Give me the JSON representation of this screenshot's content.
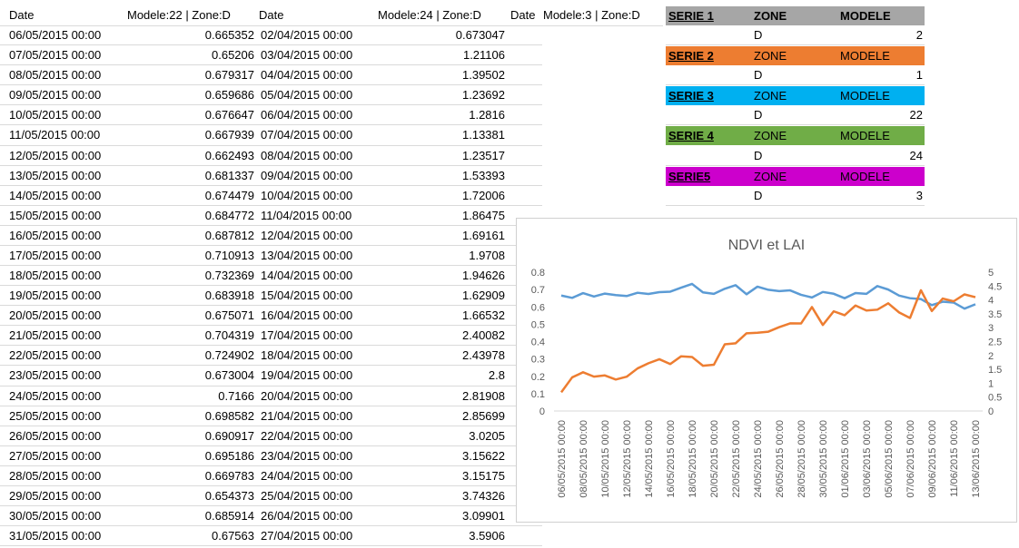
{
  "table": {
    "header": [
      "Date",
      "Modele:22 | Zone:D",
      "Date",
      "Modele:24 | Zone:D",
      "Date",
      "Modele:3 | Zone:D"
    ],
    "rows": [
      [
        "06/05/2015 00:00",
        "0.665352",
        "02/04/2015 00:00",
        "0.673047"
      ],
      [
        "07/05/2015 00:00",
        "0.65206",
        "03/04/2015 00:00",
        "1.21106"
      ],
      [
        "08/05/2015 00:00",
        "0.679317",
        "04/04/2015 00:00",
        "1.39502"
      ],
      [
        "09/05/2015 00:00",
        "0.659686",
        "05/04/2015 00:00",
        "1.23692"
      ],
      [
        "10/05/2015 00:00",
        "0.676647",
        "06/04/2015 00:00",
        "1.2816"
      ],
      [
        "11/05/2015 00:00",
        "0.667939",
        "07/04/2015 00:00",
        "1.13381"
      ],
      [
        "12/05/2015 00:00",
        "0.662493",
        "08/04/2015 00:00",
        "1.23517"
      ],
      [
        "13/05/2015 00:00",
        "0.681337",
        "09/04/2015 00:00",
        "1.53393"
      ],
      [
        "14/05/2015 00:00",
        "0.674479",
        "10/04/2015 00:00",
        "1.72006"
      ],
      [
        "15/05/2015 00:00",
        "0.684772",
        "11/04/2015 00:00",
        "1.86475"
      ],
      [
        "16/05/2015 00:00",
        "0.687812",
        "12/04/2015 00:00",
        "1.69161"
      ],
      [
        "17/05/2015 00:00",
        "0.710913",
        "13/04/2015 00:00",
        "1.9708"
      ],
      [
        "18/05/2015 00:00",
        "0.732369",
        "14/04/2015 00:00",
        "1.94626"
      ],
      [
        "19/05/2015 00:00",
        "0.683918",
        "15/04/2015 00:00",
        "1.62909"
      ],
      [
        "20/05/2015 00:00",
        "0.675071",
        "16/04/2015 00:00",
        "1.66532"
      ],
      [
        "21/05/2015 00:00",
        "0.704319",
        "17/04/2015 00:00",
        "2.40082"
      ],
      [
        "22/05/2015 00:00",
        "0.724902",
        "18/04/2015 00:00",
        "2.43978"
      ],
      [
        "23/05/2015 00:00",
        "0.673004",
        "19/04/2015 00:00",
        "2.8"
      ],
      [
        "24/05/2015 00:00",
        "0.7166",
        "20/04/2015 00:00",
        "2.81908"
      ],
      [
        "25/05/2015 00:00",
        "0.698582",
        "21/04/2015 00:00",
        "2.85699"
      ],
      [
        "26/05/2015 00:00",
        "0.690917",
        "22/04/2015 00:00",
        "3.0205"
      ],
      [
        "27/05/2015 00:00",
        "0.695186",
        "23/04/2015 00:00",
        "3.15622"
      ],
      [
        "28/05/2015 00:00",
        "0.669783",
        "24/04/2015 00:00",
        "3.15175"
      ],
      [
        "29/05/2015 00:00",
        "0.654373",
        "25/04/2015 00:00",
        "3.74326"
      ],
      [
        "30/05/2015 00:00",
        "0.685914",
        "26/04/2015 00:00",
        "3.09901"
      ],
      [
        "31/05/2015 00:00",
        "0.67563",
        "27/04/2015 00:00",
        "3.5906"
      ]
    ]
  },
  "series_blocks": [
    {
      "title": "SERIE 1",
      "zone_label": "ZONE",
      "modele_label": "MODELE",
      "zone": "D",
      "modele": "2",
      "color": "#a6a6a6"
    },
    {
      "title": "SERIE 2",
      "zone_label": "ZONE",
      "modele_label": "MODELE",
      "zone": "D",
      "modele": "1",
      "color": "#ed7d31"
    },
    {
      "title": "SERIE 3",
      "zone_label": "ZONE",
      "modele_label": "MODELE",
      "zone": "D",
      "modele": "22",
      "color": "#00b0f0"
    },
    {
      "title": "SERIE 4",
      "zone_label": "ZONE",
      "modele_label": "MODELE",
      "zone": "D",
      "modele": "24",
      "color": "#70ad47"
    },
    {
      "title": "SERIE5",
      "zone_label": "ZONE",
      "modele_label": "MODELE",
      "zone": "D",
      "modele": "3",
      "color": "#cc00cc"
    }
  ],
  "chart_data": {
    "type": "line",
    "title": "NDVI et LAI",
    "categories": [
      "06/05/2015 00:00",
      null,
      "08/05/2015 00:00",
      null,
      "10/05/2015 00:00",
      null,
      "12/05/2015 00:00",
      null,
      "14/05/2015 00:00",
      null,
      "16/05/2015 00:00",
      null,
      "18/05/2015 00:00",
      null,
      "20/05/2015 00:00",
      null,
      "22/05/2015 00:00",
      null,
      "24/05/2015 00:00",
      null,
      "26/05/2015 00:00",
      null,
      "28/05/2015 00:00",
      null,
      "30/05/2015 00:00",
      null,
      "01/06/2015 00:00",
      null,
      "03/06/2015 00:00",
      null,
      "05/06/2015 00:00",
      null,
      "07/06/2015 00:00",
      null,
      "09/06/2015 00:00",
      null,
      "11/06/2015 00:00",
      null,
      "13/06/2015 00:00"
    ],
    "series": [
      {
        "color": "#5b9bd5",
        "values": [
          0.665352,
          0.65206,
          0.679317,
          0.659686,
          0.676647,
          0.667939,
          0.662493,
          0.681337,
          0.674479,
          0.684772,
          0.687812,
          0.710913,
          0.732369,
          0.683918,
          0.675071,
          0.704319,
          0.724902,
          0.673004,
          0.7166,
          0.698582,
          0.690917,
          0.695186,
          0.669783,
          0.654373,
          0.685914,
          0.67563,
          0.65,
          0.68,
          0.675,
          0.72,
          0.7,
          0.665,
          0.65,
          0.645,
          0.61,
          0.63,
          0.625,
          0.59,
          0.615
        ]
      },
      {
        "color": "#ed7d31",
        "axis": "y2",
        "values": [
          0.673047,
          1.21106,
          1.39502,
          1.23692,
          1.2816,
          1.13381,
          1.23517,
          1.53393,
          1.72006,
          1.86475,
          1.69161,
          1.9708,
          1.94626,
          1.62909,
          1.66532,
          2.40082,
          2.43978,
          2.8,
          2.81908,
          2.85699,
          3.0205,
          3.15622,
          3.15175,
          3.74326,
          3.09901,
          3.5906,
          3.45,
          3.8,
          3.62,
          3.65,
          3.88,
          3.55,
          3.35,
          4.35,
          3.6,
          4.05,
          3.95,
          4.2,
          4.1
        ]
      }
    ],
    "ylim": [
      0,
      0.8
    ],
    "yticks": [
      0,
      0.1,
      0.2,
      0.3,
      0.4,
      0.5,
      0.6,
      0.7,
      0.8
    ],
    "y2lim": [
      0,
      5
    ],
    "y2ticks": [
      0,
      0.5,
      1,
      1.5,
      2,
      2.5,
      3,
      3.5,
      4,
      4.5,
      5
    ]
  }
}
